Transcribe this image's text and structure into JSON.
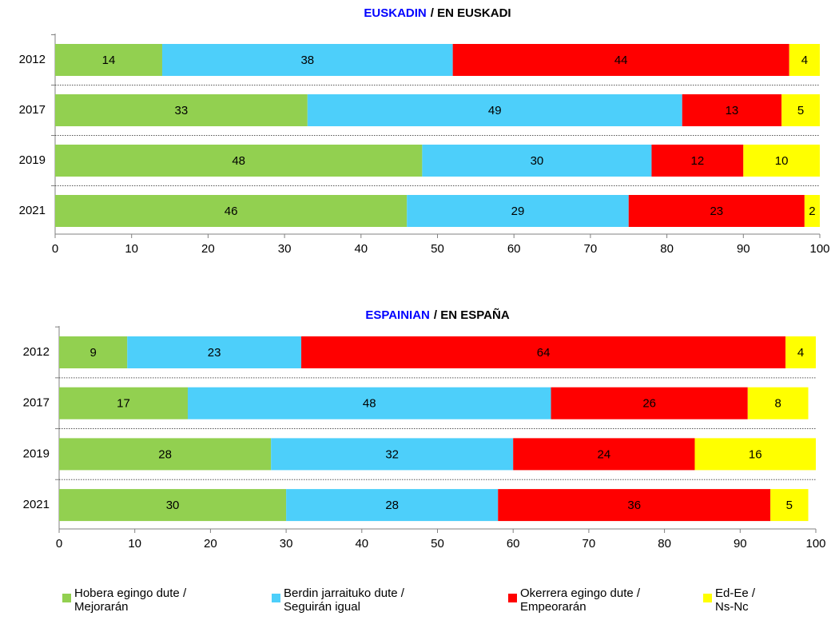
{
  "chart_data": [
    {
      "type": "stacked_barh",
      "title_parts": [
        {
          "text": "EUSKADIN",
          "color": "#0000ff"
        },
        {
          "text": "/ EN EUSKADI",
          "color": "#000000"
        }
      ],
      "categories": [
        "2012",
        "2017",
        "2019",
        "2021"
      ],
      "series": [
        {
          "name": "Hobera egingo dute /\nMejorarán",
          "color": "#92d050",
          "values": [
            14,
            33,
            48,
            46
          ]
        },
        {
          "name": "Berdin jarraituko dute /\nSeguirán igual",
          "color": "#4dcffa",
          "values": [
            38,
            49,
            30,
            29
          ]
        },
        {
          "name": "Okerrera egingo dute /\nEmpeorarán",
          "color": "#ff0000",
          "values": [
            44,
            13,
            12,
            23
          ]
        },
        {
          "name": "Ed-Ee /\nNs-Nc",
          "color": "#ffff00",
          "values": [
            4,
            5,
            10,
            2
          ]
        }
      ],
      "xlim": [
        0,
        100
      ],
      "xticks": [
        0,
        10,
        20,
        30,
        40,
        50,
        60,
        70,
        80,
        90,
        100
      ]
    },
    {
      "type": "stacked_barh",
      "title_parts": [
        {
          "text": "ESPAINIAN",
          "color": "#0000ff"
        },
        {
          "text": "/ EN ESPAÑA",
          "color": "#000000"
        }
      ],
      "categories": [
        "2012",
        "2017",
        "2019",
        "2021"
      ],
      "series": [
        {
          "color": "#92d050",
          "values": [
            9,
            17,
            28,
            30
          ]
        },
        {
          "color": "#4dcffa",
          "values": [
            23,
            48,
            32,
            28
          ]
        },
        {
          "color": "#ff0000",
          "values": [
            64,
            26,
            24,
            36
          ]
        },
        {
          "color": "#ffff00",
          "values": [
            4,
            8,
            16,
            5
          ]
        }
      ],
      "xlim": [
        0,
        100
      ],
      "xticks": [
        0,
        10,
        20,
        30,
        40,
        50,
        60,
        70,
        80,
        90,
        100
      ]
    }
  ]
}
